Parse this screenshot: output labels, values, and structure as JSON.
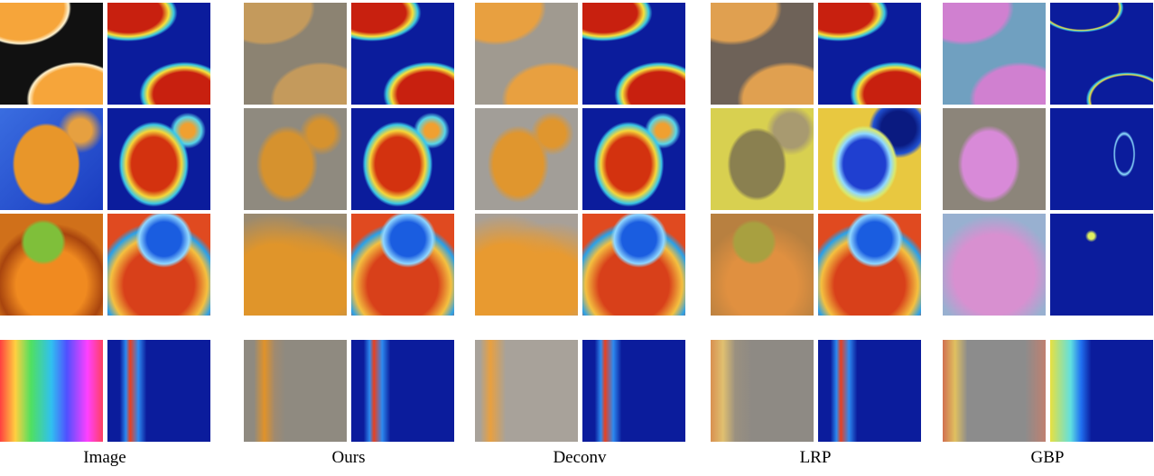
{
  "figure": {
    "columns": [
      {
        "label": "Image"
      },
      {
        "label": "Ours"
      },
      {
        "label": "Deconv"
      },
      {
        "label": "LRP"
      },
      {
        "label": "GBP"
      }
    ]
  }
}
